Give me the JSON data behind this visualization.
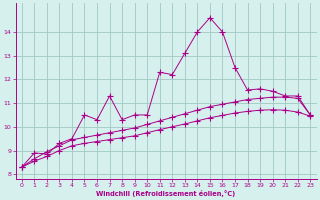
{
  "xlabel": "Windchill (Refroidissement éolien,°C)",
  "bg_color": "#d6f0ee",
  "line_color": "#aa0088",
  "grid_color": "#a0c8c0",
  "xlim": [
    -0.5,
    23.5
  ],
  "ylim": [
    7.8,
    15.2
  ],
  "xticks": [
    0,
    1,
    2,
    3,
    4,
    5,
    6,
    7,
    8,
    9,
    10,
    11,
    12,
    13,
    14,
    15,
    16,
    17,
    18,
    19,
    20,
    21,
    22,
    23
  ],
  "yticks": [
    8,
    9,
    10,
    11,
    12,
    13,
    14
  ],
  "line1_x": [
    0,
    1,
    2,
    3,
    4,
    5,
    6,
    7,
    8,
    9,
    10,
    11,
    12,
    13,
    14,
    15,
    16,
    17,
    18,
    19,
    20,
    21,
    22,
    23
  ],
  "line1_y": [
    8.3,
    8.9,
    8.85,
    9.3,
    9.5,
    10.5,
    10.3,
    11.3,
    10.3,
    10.5,
    10.5,
    12.3,
    12.2,
    13.1,
    14.0,
    14.6,
    14.0,
    12.5,
    11.55,
    11.6,
    11.5,
    11.3,
    11.3,
    10.5
  ],
  "line2_x": [
    0,
    1,
    2,
    3,
    4,
    5,
    6,
    7,
    8,
    9,
    10,
    11,
    12,
    13,
    14,
    15,
    16,
    17,
    18,
    19,
    20,
    21,
    22,
    23
  ],
  "line2_y": [
    8.3,
    8.65,
    8.95,
    9.2,
    9.45,
    9.55,
    9.65,
    9.75,
    9.85,
    9.95,
    10.1,
    10.25,
    10.4,
    10.55,
    10.7,
    10.85,
    10.95,
    11.05,
    11.15,
    11.2,
    11.25,
    11.25,
    11.2,
    10.5
  ],
  "line3_x": [
    0,
    1,
    2,
    3,
    4,
    5,
    6,
    7,
    8,
    9,
    10,
    11,
    12,
    13,
    14,
    15,
    16,
    17,
    18,
    19,
    20,
    21,
    22,
    23
  ],
  "line3_y": [
    8.3,
    8.55,
    8.75,
    9.0,
    9.2,
    9.3,
    9.38,
    9.46,
    9.54,
    9.62,
    9.75,
    9.88,
    10.0,
    10.12,
    10.25,
    10.38,
    10.48,
    10.58,
    10.65,
    10.7,
    10.72,
    10.7,
    10.62,
    10.45
  ]
}
